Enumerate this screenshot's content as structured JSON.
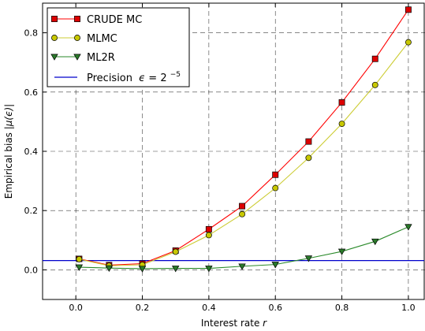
{
  "chart_data": {
    "type": "line",
    "xlabel": "Interest rate",
    "xlabel_symbol": "r",
    "ylabel": "Empirical bias",
    "ylabel_symbol": "|μ(ϵ)|",
    "xlim": [
      -0.1,
      1.05
    ],
    "ylim": [
      -0.1,
      0.9
    ],
    "x_ticks": [
      0.0,
      0.2,
      0.4,
      0.6,
      0.8,
      1.0
    ],
    "x_tick_labels": [
      "0.0",
      "0.2",
      "0.4",
      "0.6",
      "0.8",
      "1.0"
    ],
    "y_ticks": [
      0.0,
      0.2,
      0.4,
      0.6,
      0.8
    ],
    "y_tick_labels": [
      "0.0",
      "0.2",
      "0.4",
      "0.6",
      "0.8"
    ],
    "grid": true,
    "legend_position": "top-left",
    "x": [
      0.01,
      0.1,
      0.2,
      0.3,
      0.4,
      0.5,
      0.6,
      0.7,
      0.8,
      0.9,
      1.0
    ],
    "series": [
      {
        "name": "CRUDE MC",
        "marker": "square",
        "line_color": "#ff0000",
        "marker_color": "#dd0000",
        "values": [
          0.037,
          0.016,
          0.021,
          0.065,
          0.137,
          0.215,
          0.321,
          0.433,
          0.565,
          0.712,
          0.878
        ]
      },
      {
        "name": "MLMC",
        "marker": "circle",
        "line_color": "#cccc33",
        "marker_color": "#c8c800",
        "values": [
          0.036,
          0.014,
          0.017,
          0.061,
          0.117,
          0.188,
          0.276,
          0.378,
          0.493,
          0.624,
          0.768
        ]
      },
      {
        "name": "ML2R",
        "marker": "triangle-down",
        "line_color": "#2a8a2a",
        "marker_color": "#2a7a2a",
        "values": [
          0.009,
          0.006,
          0.004,
          0.005,
          0.005,
          0.012,
          0.018,
          0.039,
          0.062,
          0.096,
          0.145
        ]
      }
    ],
    "reference_line": {
      "name_prefix": "Precision",
      "name_symbol": "ϵ",
      "name_eq": "=",
      "name_base": "2",
      "name_exp": "−5",
      "value": 0.03125,
      "color": "#0000cc"
    }
  }
}
